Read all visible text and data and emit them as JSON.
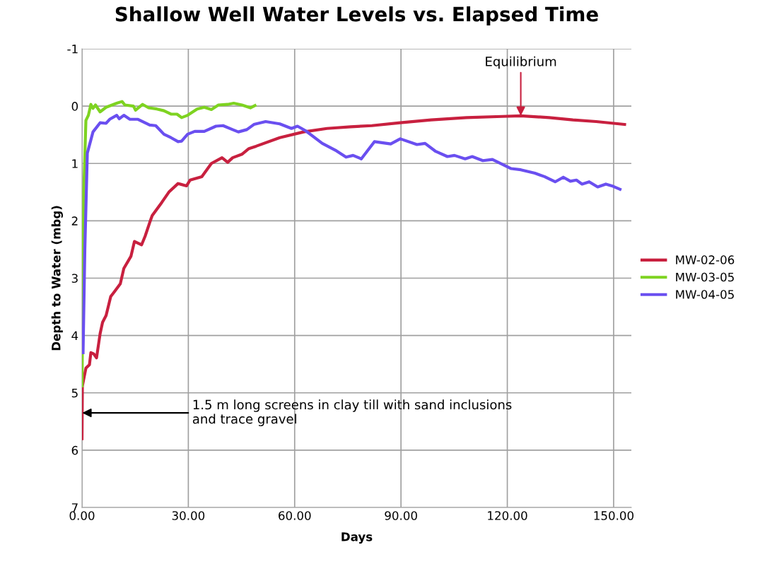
{
  "chart_data": {
    "type": "line",
    "title": "Shallow Well Water Levels vs. Elapsed Time",
    "xlabel": "Days",
    "ylabel": "Depth to Water (mbg)",
    "xlim": [
      0,
      155
    ],
    "xticks": [
      {
        "value": 0,
        "label": "0.00"
      },
      {
        "value": 30,
        "label": "30.00"
      },
      {
        "value": 60,
        "label": "60.00"
      },
      {
        "value": 90,
        "label": "90.00"
      },
      {
        "value": 120,
        "label": "120.00"
      },
      {
        "value": 150,
        "label": "150.00"
      }
    ],
    "ylim": [
      7,
      -1
    ],
    "yticks": [
      -1,
      0,
      1,
      2,
      3,
      4,
      5,
      6,
      7
    ],
    "grid": true,
    "legend": "right",
    "marker": "none",
    "line_style": "solid",
    "series": [
      {
        "name": "MW-02-06",
        "color": "#c8203f",
        "x": [
          0,
          0.1,
          1.1,
          2.1,
          2.5,
          3.3,
          4.1,
          5.1,
          5.8,
          6.8,
          8.1,
          9.1,
          10.8,
          11.8,
          13.8,
          14.8,
          16.8,
          17.8,
          19.1,
          19.8,
          22.5,
          24.5,
          27.1,
          29.5,
          30.5,
          33.8,
          36.5,
          39.5,
          41.1,
          42.5,
          45.1,
          47.1,
          49.1,
          55.8,
          62.5,
          69.1,
          75.8,
          81.8,
          89.8,
          98.5,
          108.5,
          118.5,
          123.8,
          131.8,
          138.5,
          145.1,
          153.1
        ],
        "values": [
          5.8,
          4.88,
          4.57,
          4.51,
          4.3,
          4.32,
          4.39,
          3.97,
          3.77,
          3.65,
          3.32,
          3.24,
          3.1,
          2.83,
          2.62,
          2.36,
          2.42,
          2.27,
          2.03,
          1.91,
          1.68,
          1.5,
          1.35,
          1.39,
          1.29,
          1.23,
          1.0,
          0.9,
          0.98,
          0.9,
          0.84,
          0.74,
          0.7,
          0.55,
          0.45,
          0.39,
          0.36,
          0.34,
          0.29,
          0.24,
          0.2,
          0.18,
          0.17,
          0.2,
          0.24,
          0.27,
          0.32
        ]
      },
      {
        "name": "MW-03-05",
        "color": "#7ed321",
        "x": [
          0,
          0.5,
          1.1,
          1.8,
          2.5,
          3.1,
          3.8,
          5.1,
          6.8,
          8.5,
          9.8,
          11.3,
          12.1,
          14.5,
          15.1,
          17.1,
          18.8,
          21.1,
          23.1,
          25.1,
          26.8,
          28.1,
          29.8,
          32.5,
          34.5,
          36.5,
          38.5,
          41.1,
          42.8,
          45.1,
          47.5,
          48.8
        ],
        "values": [
          4.88,
          1.5,
          0.25,
          0.16,
          -0.03,
          0.04,
          -0.02,
          0.1,
          0.02,
          -0.02,
          -0.05,
          -0.08,
          -0.02,
          0.0,
          0.07,
          -0.03,
          0.03,
          0.05,
          0.08,
          0.14,
          0.14,
          0.2,
          0.16,
          0.05,
          0.02,
          0.06,
          -0.02,
          -0.03,
          -0.05,
          -0.02,
          0.03,
          -0.01
        ]
      },
      {
        "name": "MW-04-05",
        "color": "#6a4ff0",
        "x": [
          0.3,
          0.8,
          1.5,
          3.1,
          5.1,
          6.8,
          7.8,
          9.8,
          10.5,
          11.8,
          13.5,
          15.8,
          19.1,
          20.8,
          23.1,
          25.1,
          27.1,
          28.1,
          29.8,
          31.8,
          34.5,
          37.8,
          39.8,
          42.5,
          44.1,
          46.5,
          48.5,
          51.8,
          55.8,
          59.1,
          60.8,
          63.1,
          67.8,
          71.8,
          74.5,
          76.5,
          78.8,
          82.5,
          87.1,
          89.8,
          94.5,
          96.8,
          99.8,
          103.1,
          105.1,
          108.1,
          110.1,
          113.1,
          115.8,
          121.1,
          123.8,
          127.8,
          130.5,
          133.5,
          135.8,
          137.8,
          139.5,
          141.1,
          143.1,
          145.5,
          147.8,
          149.5,
          151.8
        ],
        "values": [
          4.3,
          2.5,
          0.82,
          0.45,
          0.29,
          0.3,
          0.23,
          0.16,
          0.22,
          0.16,
          0.23,
          0.23,
          0.33,
          0.34,
          0.49,
          0.55,
          0.62,
          0.61,
          0.49,
          0.44,
          0.44,
          0.35,
          0.34,
          0.41,
          0.45,
          0.41,
          0.32,
          0.27,
          0.31,
          0.39,
          0.35,
          0.43,
          0.65,
          0.78,
          0.89,
          0.86,
          0.92,
          0.62,
          0.66,
          0.57,
          0.67,
          0.65,
          0.79,
          0.88,
          0.86,
          0.92,
          0.88,
          0.95,
          0.93,
          1.09,
          1.11,
          1.17,
          1.23,
          1.32,
          1.24,
          1.31,
          1.29,
          1.36,
          1.32,
          1.41,
          1.36,
          1.39,
          1.45
        ]
      }
    ],
    "annotations": [
      {
        "text": "Equilibrium",
        "x": 123.8,
        "y": 0.17
      },
      {
        "text": "1.5 m long screens in clay till with sand inclusions\nand trace gravel",
        "x": 0.05,
        "y": 5.35
      }
    ]
  }
}
